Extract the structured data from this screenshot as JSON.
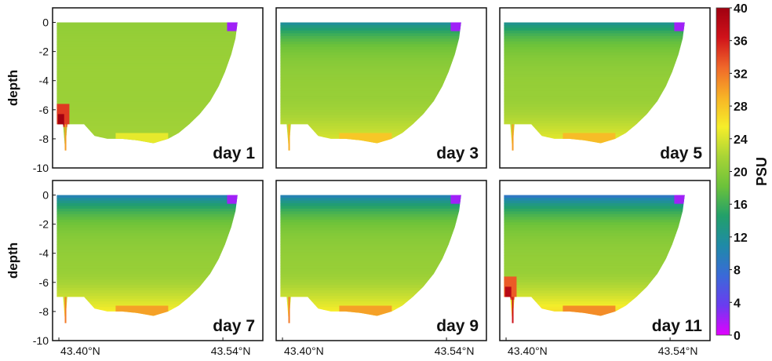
{
  "chart_data": {
    "type": "heatmap",
    "panels": [
      {
        "label": "day 1",
        "surface_fresh": 0.05,
        "deep_salty": 0.1,
        "hotspot": 0.55
      },
      {
        "label": "day 3",
        "surface_fresh": 0.75,
        "deep_salty": 0.55,
        "hotspot": 0.0
      },
      {
        "label": "day 5",
        "surface_fresh": 0.7,
        "deep_salty": 0.65,
        "hotspot": 0.0
      },
      {
        "label": "day 7",
        "surface_fresh": 0.9,
        "deep_salty": 0.85,
        "hotspot": 0.0
      },
      {
        "label": "day 9",
        "surface_fresh": 0.9,
        "deep_salty": 0.85,
        "hotspot": 0.0
      },
      {
        "label": "day 11",
        "surface_fresh": 1.0,
        "deep_salty": 1.0,
        "hotspot": 0.45
      }
    ],
    "ylabel": "depth",
    "yticks": [
      "0",
      "-2",
      "-4",
      "-6",
      "-8",
      "-10"
    ],
    "ylim": [
      -10,
      1
    ],
    "xticks": [
      "43.40°N",
      "43.54°N"
    ],
    "xlim": [
      43.4,
      43.54
    ],
    "colorbar": {
      "title": "PSU",
      "min": 0,
      "max": 40,
      "ticks": [
        "40",
        "36",
        "32",
        "28",
        "24",
        "20",
        "16",
        "12",
        "8",
        "4",
        "0"
      ],
      "colors": [
        "#e100ff",
        "#6a3cf0",
        "#3a6ad8",
        "#1f8aa8",
        "#22a06a",
        "#6cc23a",
        "#a8d436",
        "#f6ee2a",
        "#f7b326",
        "#f0682a",
        "#d0121a",
        "#a00010"
      ]
    },
    "typical_salinity": 21
  }
}
